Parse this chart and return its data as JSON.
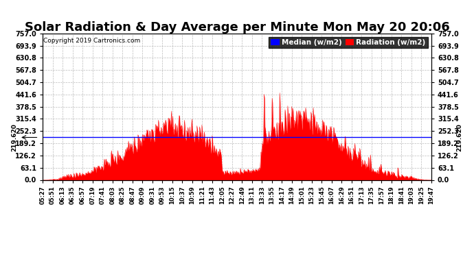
{
  "title": "Solar Radiation & Day Average per Minute Mon May 20 20:06",
  "copyright": "Copyright 2019 Cartronics.com",
  "median_value": 219.62,
  "y_max": 757.0,
  "y_min": 0.0,
  "yticks": [
    0.0,
    63.1,
    126.2,
    189.2,
    252.3,
    315.4,
    378.5,
    441.6,
    504.7,
    567.8,
    630.8,
    693.9,
    757.0
  ],
  "ytick_labels": [
    "0.0",
    "63.1",
    "126.2",
    "189.2",
    "252.3",
    "315.4",
    "378.5",
    "441.6",
    "504.7",
    "567.8",
    "630.8",
    "693.9",
    "757.0"
  ],
  "fill_color": "#FF0000",
  "median_line_color": "#0000FF",
  "background_color": "#FFFFFF",
  "grid_color": "#AAAAAA",
  "legend_median_bg": "#0000FF",
  "legend_radiation_bg": "#FF0000",
  "title_fontsize": 13,
  "xtick_labels": [
    "05:27",
    "05:51",
    "06:13",
    "06:35",
    "06:57",
    "07:19",
    "07:41",
    "08:03",
    "08:25",
    "08:47",
    "09:09",
    "09:31",
    "09:53",
    "10:15",
    "10:37",
    "10:59",
    "11:21",
    "11:43",
    "12:05",
    "12:27",
    "12:49",
    "13:11",
    "13:33",
    "13:55",
    "14:17",
    "14:39",
    "15:01",
    "15:23",
    "15:45",
    "16:07",
    "16:29",
    "16:51",
    "17:13",
    "17:35",
    "17:57",
    "18:19",
    "18:41",
    "19:03",
    "19:25",
    "19:47"
  ],
  "num_points": 870,
  "seed": 99
}
